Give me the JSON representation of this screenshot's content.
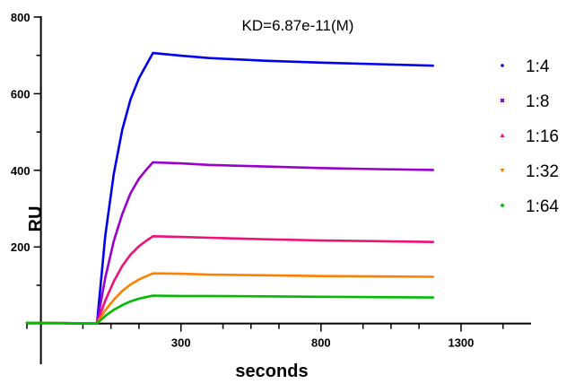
{
  "chart_data": {
    "type": "line",
    "annotation": "KD=6.87e-11(M)",
    "xlabel": "seconds",
    "ylabel": "RU",
    "xlim": [
      -250,
      1550
    ],
    "ylim": [
      -50,
      800
    ],
    "xticks": [
      300,
      800,
      1300
    ],
    "xtick_labels": [
      "300",
      "800",
      "1300"
    ],
    "yticks": [
      200,
      400,
      600,
      800
    ],
    "ytick_labels": [
      "200",
      "400",
      "600",
      "800"
    ],
    "legend_position": "right",
    "series": [
      {
        "name": "1:4",
        "color": "#0000EE",
        "marker": "dot",
        "x": [
          -250,
          0,
          30,
          60,
          90,
          120,
          150,
          180,
          200,
          300,
          400,
          600,
          800,
          1000,
          1200
        ],
        "y": [
          2,
          0,
          230,
          390,
          505,
          585,
          640,
          680,
          706,
          699,
          693,
          686,
          681,
          677,
          673
        ]
      },
      {
        "name": "1:8",
        "color": "#9900CC",
        "marker": "square",
        "x": [
          -250,
          0,
          30,
          60,
          90,
          120,
          150,
          180,
          200,
          300,
          400,
          600,
          800,
          1000,
          1200
        ],
        "y": [
          2,
          0,
          120,
          215,
          285,
          340,
          378,
          405,
          421,
          418,
          414,
          410,
          406,
          403,
          401
        ]
      },
      {
        "name": "1:16",
        "color": "#EE1177",
        "marker": "triangle-up",
        "x": [
          -250,
          0,
          30,
          60,
          90,
          120,
          150,
          180,
          200,
          300,
          400,
          600,
          800,
          1000,
          1200
        ],
        "y": [
          2,
          0,
          60,
          110,
          150,
          180,
          202,
          218,
          228,
          226,
          224,
          220,
          217,
          215,
          213
        ]
      },
      {
        "name": "1:32",
        "color": "#FF8000",
        "marker": "triangle-down",
        "x": [
          -250,
          0,
          30,
          60,
          90,
          120,
          150,
          180,
          200,
          300,
          400,
          600,
          800,
          1000,
          1200
        ],
        "y": [
          2,
          0,
          35,
          62,
          85,
          102,
          115,
          125,
          131,
          130,
          128,
          126,
          124,
          123,
          122
        ]
      },
      {
        "name": "1:64",
        "color": "#00BB00",
        "marker": "diamond",
        "x": [
          -250,
          0,
          30,
          60,
          90,
          120,
          150,
          180,
          200,
          300,
          400,
          600,
          800,
          1000,
          1200
        ],
        "y": [
          2,
          0,
          20,
          36,
          48,
          58,
          65,
          70,
          73,
          72,
          72,
          71,
          70,
          69,
          68
        ]
      }
    ]
  }
}
